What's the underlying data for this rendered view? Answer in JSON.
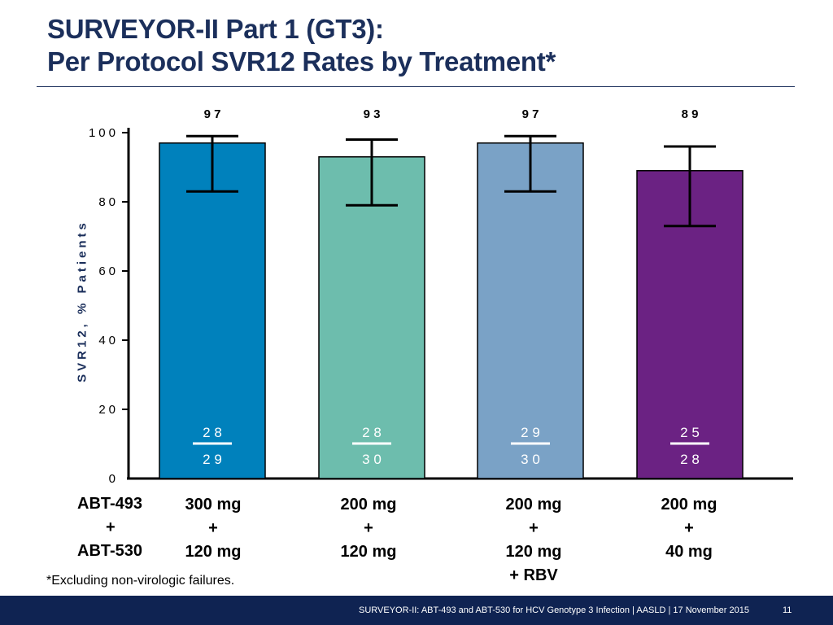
{
  "slide": {
    "title_line1": "SURVEYOR-II Part 1 (GT3):",
    "title_line2": "Per Protocol SVR12 Rates by Treatment*",
    "footnote": "*Excluding non-virologic failures.",
    "footer_text": "SURVEYOR-II: ABT-493 and ABT-530 for HCV Genotype 3 Infection   | AASLD | 17 November 2015",
    "page_number": "11"
  },
  "row_labels": {
    "abt493": "ABT-493",
    "plus": "+",
    "abt530": "ABT-530"
  },
  "doses": [
    {
      "line1": "300 mg",
      "line2": "+",
      "line3": "120 mg",
      "line4": ""
    },
    {
      "line1": "200 mg",
      "line2": "+",
      "line3": "120 mg",
      "line4": ""
    },
    {
      "line1": "200 mg",
      "line2": "+",
      "line3": "120 mg",
      "line4": "+ RBV"
    },
    {
      "line1": "200 mg",
      "line2": "+",
      "line3": "40 mg",
      "line4": ""
    }
  ],
  "chart_data": {
    "type": "bar",
    "title": "Per Protocol SVR12 Rates by Treatment*",
    "ylabel": "SVR12, % Patients",
    "xlabel": "",
    "ylim": [
      0,
      100
    ],
    "yticks": [
      "0",
      "20",
      "40",
      "60",
      "80",
      "100"
    ],
    "categories": [
      "300 mg + 120 mg",
      "200 mg + 120 mg",
      "200 mg + 120 mg + RBV",
      "200 mg + 40 mg"
    ],
    "values": [
      97,
      93,
      97,
      89
    ],
    "value_labels": [
      "9 7",
      "9 3",
      "9 7",
      "8 9"
    ],
    "error_low": [
      83,
      79,
      83,
      73
    ],
    "error_high": [
      99,
      98,
      99,
      96
    ],
    "numerators": [
      "2 8",
      "2 8",
      "2 9",
      "2 5"
    ],
    "denominators": [
      "2 9",
      "3 0",
      "3 0",
      "2 8"
    ],
    "colors": [
      "#0081bc",
      "#6dbdad",
      "#7aa2c6",
      "#6b2283"
    ]
  }
}
